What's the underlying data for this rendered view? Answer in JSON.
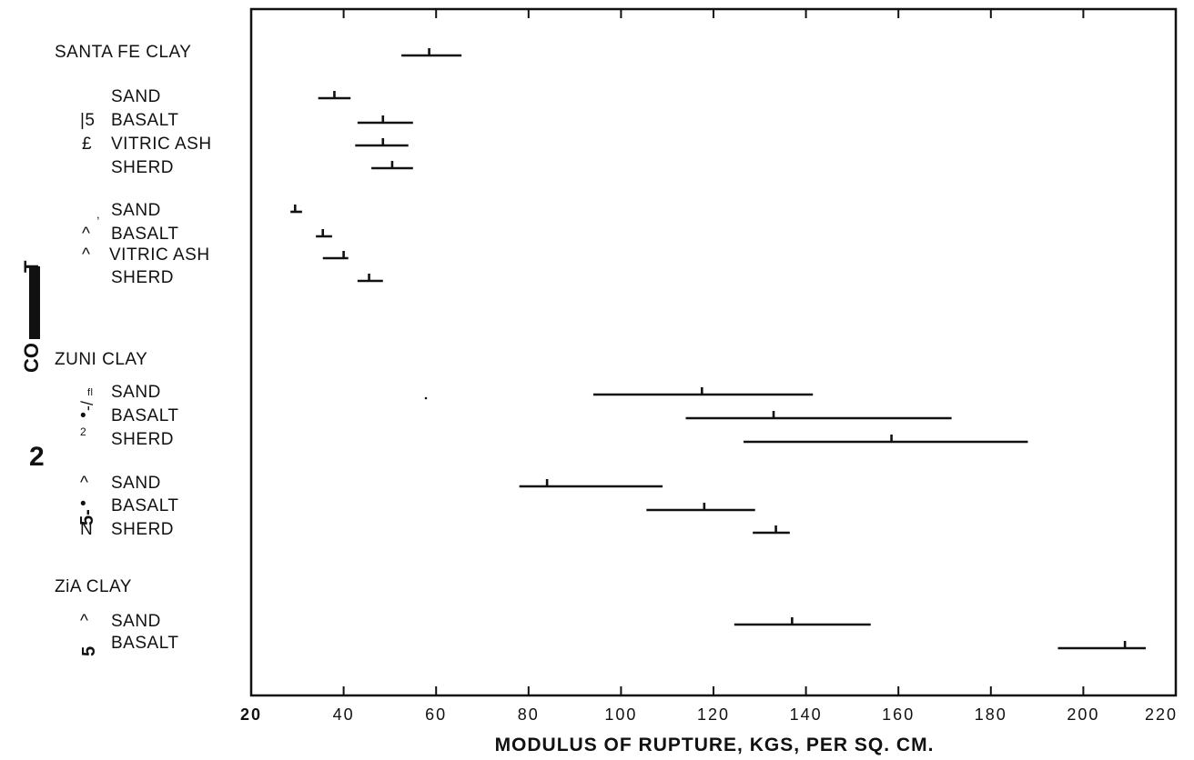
{
  "chart_data": {
    "type": "range",
    "xlabel": "MODULUS OF RUPTURE, KGS, PER SQ. CM.",
    "xlim": [
      20,
      220
    ],
    "x_ticks": [
      "20",
      "40",
      "60",
      "80",
      "100",
      "120",
      "140",
      "160",
      "180",
      "200",
      "220"
    ],
    "groups": [
      {
        "label": "SANTA FE CLAY",
        "items": [
          {
            "label": "",
            "prefix": "",
            "min": 52.5,
            "mean": 58.5,
            "max": 65.5
          }
        ]
      },
      {
        "label": "",
        "items": [
          {
            "label": "SAND",
            "prefix": "",
            "min": 34.5,
            "mean": 38,
            "max": 41.5
          },
          {
            "label": "BASALT",
            "prefix": "|5",
            "min": 43,
            "mean": 48.5,
            "max": 55
          },
          {
            "label": "VITRIC ASH",
            "prefix": "£",
            "min": 42.5,
            "mean": 48.5,
            "max": 54
          },
          {
            "label": "SHERD",
            "prefix": "",
            "min": 46,
            "mean": 50.5,
            "max": 55
          }
        ]
      },
      {
        "label": "",
        "items": [
          {
            "label": "SAND",
            "prefix": ",",
            "min": 28.5,
            "mean": 29.5,
            "max": 31
          },
          {
            "label": "BASALT",
            "prefix": "^",
            "min": 34,
            "mean": 35.5,
            "max": 37.5
          },
          {
            "label": "VITRIC ASH",
            "prefix": "^",
            "min": 35.5,
            "mean": 40,
            "max": 41
          },
          {
            "label": "SHERD",
            "prefix": "",
            "min": 43,
            "mean": 45.5,
            "max": 48.5
          }
        ]
      },
      {
        "label": "ZUNI CLAY",
        "items": [
          {
            "label": "SAND",
            "prefix": "fl",
            "min": 94,
            "mean": 117.5,
            "max": 141.5
          },
          {
            "label": "BASALT",
            "prefix": "•",
            "min": 114,
            "mean": 133,
            "max": 171.5
          },
          {
            "label": "SHERD",
            "prefix": "2",
            "min": 126.5,
            "mean": 158.5,
            "max": 188
          }
        ]
      },
      {
        "label": "",
        "items": [
          {
            "label": "SAND",
            "prefix": "^",
            "min": 78,
            "mean": 84,
            "max": 109
          },
          {
            "label": "BASALT",
            "prefix": "•",
            "min": 105.5,
            "mean": 118,
            "max": 129
          },
          {
            "label": "SHERD",
            "prefix": "N",
            "min": 128.5,
            "mean": 133.5,
            "max": 136.5
          }
        ]
      },
      {
        "label": "ZiA CLAY",
        "items": [
          {
            "label": "SAND",
            "prefix": "^",
            "min": 124.5,
            "mean": 137,
            "max": 154
          },
          {
            "label": "BASALT",
            "prefix": "",
            "min": 194.5,
            "mean": 209,
            "max": 213.5
          }
        ]
      }
    ],
    "grid": false,
    "legend": "none"
  },
  "margin_text": {
    "vertical_a": "CO",
    "vertical_b": "T",
    "digit": "2",
    "glyph_zuni_1": "-/",
    "glyph_zuni_2": "5-",
    "glyph_zia": "5"
  }
}
